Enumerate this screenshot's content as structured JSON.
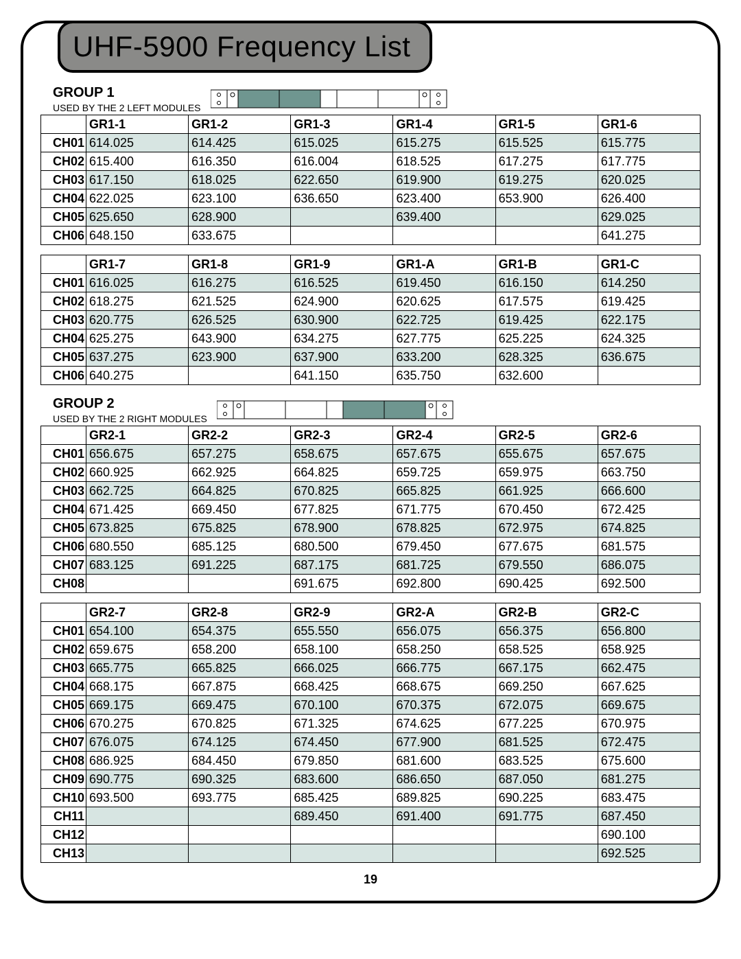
{
  "title": "UHF-5900 Frequency List",
  "page_number": "19",
  "diagram": {
    "outline": "#000000",
    "fill_inactive": "#ffffff",
    "fill_active": "#6f9690"
  },
  "groups": [
    {
      "name": "GROUP 1",
      "subtitle": "USED BY THE 2 LEFT MODULES",
      "active_side": "left",
      "tables": [
        {
          "columns": [
            "GR1-1",
            "GR1-2",
            "GR1-3",
            "GR1-4",
            "GR1-5",
            "GR1-6"
          ],
          "rows": [
            {
              "label": "CH01",
              "cells": [
                "614.025",
                "614.425",
                "615.025",
                "615.275",
                "615.525",
                "615.775"
              ],
              "alt": true
            },
            {
              "label": "CH02",
              "cells": [
                "615.400",
                "616.350",
                "616.004",
                "618.525",
                "617.275",
                "617.775"
              ],
              "alt": false
            },
            {
              "label": "CH03",
              "cells": [
                "617.150",
                "618.025",
                "622.650",
                "619.900",
                "619.275",
                "620.025"
              ],
              "alt": true
            },
            {
              "label": "CH04",
              "cells": [
                "622.025",
                "623.100",
                "636.650",
                "623.400",
                "653.900",
                "626.400"
              ],
              "alt": false
            },
            {
              "label": "CH05",
              "cells": [
                "625.650",
                "628.900",
                "",
                "639.400",
                "",
                "629.025"
              ],
              "alt": true
            },
            {
              "label": "CH06",
              "cells": [
                "648.150",
                "633.675",
                "",
                "",
                "",
                "641.275"
              ],
              "alt": false
            }
          ]
        },
        {
          "columns": [
            "GR1-7",
            "GR1-8",
            "GR1-9",
            "GR1-A",
            "GR1-B",
            "GR1-C"
          ],
          "rows": [
            {
              "label": "CH01",
              "cells": [
                "616.025",
                "616.275",
                "616.525",
                "619.450",
                "616.150",
                "614.250"
              ],
              "alt": true
            },
            {
              "label": "CH02",
              "cells": [
                "618.275",
                "621.525",
                "624.900",
                "620.625",
                "617.575",
                "619.425"
              ],
              "alt": false
            },
            {
              "label": "CH03",
              "cells": [
                "620.775",
                "626.525",
                "630.900",
                "622.725",
                "619.425",
                "622.175"
              ],
              "alt": true
            },
            {
              "label": "CH04",
              "cells": [
                "625.275",
                "643.900",
                "634.275",
                "627.775",
                "625.225",
                "624.325"
              ],
              "alt": false
            },
            {
              "label": "CH05",
              "cells": [
                "637.275",
                "623.900",
                "637.900",
                "633.200",
                "628.325",
                "636.675"
              ],
              "alt": true
            },
            {
              "label": "CH06",
              "cells": [
                "640.275",
                "",
                "641.150",
                "635.750",
                "632.600",
                ""
              ],
              "alt": false
            }
          ]
        }
      ]
    },
    {
      "name": "GROUP 2",
      "subtitle": "USED BY THE 2 RIGHT MODULES",
      "active_side": "right",
      "tables": [
        {
          "columns": [
            "GR2-1",
            "GR2-2",
            "GR2-3",
            "GR2-4",
            "GR2-5",
            "GR2-6"
          ],
          "rows": [
            {
              "label": "CH01",
              "cells": [
                "656.675",
                "657.275",
                "658.675",
                "657.675",
                "655.675",
                "657.675"
              ],
              "alt": true
            },
            {
              "label": "CH02",
              "cells": [
                "660.925",
                "662.925",
                "664.825",
                "659.725",
                "659.975",
                "663.750"
              ],
              "alt": false
            },
            {
              "label": "CH03",
              "cells": [
                "662.725",
                "664.825",
                "670.825",
                "665.825",
                "661.925",
                "666.600"
              ],
              "alt": true
            },
            {
              "label": "CH04",
              "cells": [
                "671.425",
                "669.450",
                "677.825",
                "671.775",
                "670.450",
                "672.425"
              ],
              "alt": false
            },
            {
              "label": "CH05",
              "cells": [
                "673.825",
                "675.825",
                "678.900",
                "678.825",
                "672.975",
                "674.825"
              ],
              "alt": true
            },
            {
              "label": "CH06",
              "cells": [
                "680.550",
                "685.125",
                "680.500",
                "679.450",
                "677.675",
                "681.575"
              ],
              "alt": false
            },
            {
              "label": "CH07",
              "cells": [
                "683.125",
                "691.225",
                "687.175",
                "681.725",
                "679.550",
                "686.075"
              ],
              "alt": true
            },
            {
              "label": "CH08",
              "cells": [
                "",
                "",
                "691.675",
                "692.800",
                "690.425",
                "692.500"
              ],
              "alt": false
            }
          ]
        },
        {
          "columns": [
            "GR2-7",
            "GR2-8",
            "GR2-9",
            "GR2-A",
            "GR2-B",
            "GR2-C"
          ],
          "rows": [
            {
              "label": "CH01",
              "cells": [
                "654.100",
                "654.375",
                "655.550",
                "656.075",
                "656.375",
                "656.800"
              ],
              "alt": true
            },
            {
              "label": "CH02",
              "cells": [
                "659.675",
                "658.200",
                "658.100",
                "658.250",
                "658.525",
                "658.925"
              ],
              "alt": false
            },
            {
              "label": "CH03",
              "cells": [
                "665.775",
                "665.825",
                "666.025",
                "666.775",
                "667.175",
                "662.475"
              ],
              "alt": true
            },
            {
              "label": "CH04",
              "cells": [
                "668.175",
                "667.875",
                "668.425",
                "668.675",
                "669.250",
                "667.625"
              ],
              "alt": false
            },
            {
              "label": "CH05",
              "cells": [
                "669.175",
                "669.475",
                "670.100",
                "670.375",
                "672.075",
                "669.675"
              ],
              "alt": true
            },
            {
              "label": "CH06",
              "cells": [
                "670.275",
                "670.825",
                "671.325",
                "674.625",
                "677.225",
                "670.975"
              ],
              "alt": false
            },
            {
              "label": "CH07",
              "cells": [
                "676.075",
                "674.125",
                "674.450",
                "677.900",
                "681.525",
                "672.475"
              ],
              "alt": true
            },
            {
              "label": "CH08",
              "cells": [
                "686.925",
                "684.450",
                "679.850",
                "681.600",
                "683.525",
                "675.600"
              ],
              "alt": false
            },
            {
              "label": "CH09",
              "cells": [
                "690.775",
                "690.325",
                "683.600",
                "686.650",
                "687.050",
                "681.275"
              ],
              "alt": true
            },
            {
              "label": "CH10",
              "cells": [
                "693.500",
                "693.775",
                "685.425",
                "689.825",
                "690.225",
                "683.475"
              ],
              "alt": false
            },
            {
              "label": "CH11",
              "cells": [
                "",
                "",
                "689.450",
                "691.400",
                "691.775",
                "687.450"
              ],
              "alt": true
            },
            {
              "label": "CH12",
              "cells": [
                "",
                "",
                "",
                "",
                "",
                "690.100"
              ],
              "alt": false
            },
            {
              "label": "CH13",
              "cells": [
                "",
                "",
                "",
                "",
                "",
                "692.525"
              ],
              "alt": true
            }
          ]
        }
      ]
    }
  ]
}
